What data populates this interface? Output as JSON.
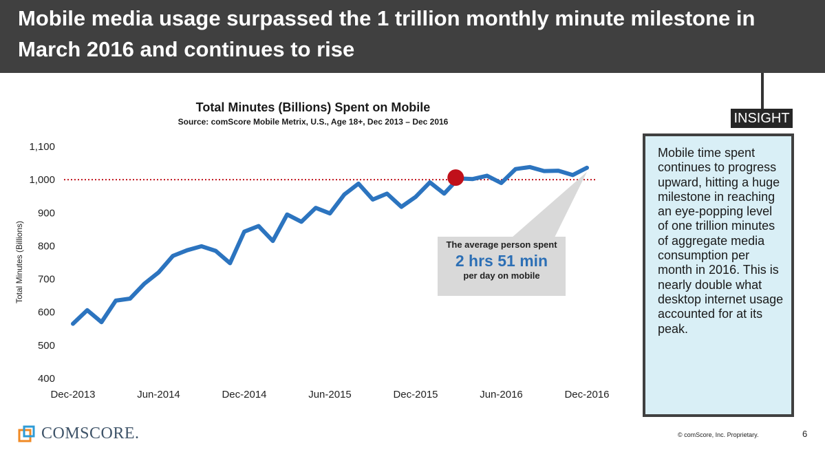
{
  "header": {
    "title": "Mobile media usage surpassed the 1 trillion monthly minute milestone in March 2016 and continues to rise"
  },
  "insight": {
    "tag": "INSIGHT",
    "text": "Mobile time spent continues to progress upward, hitting a huge milestone in reaching an eye-popping level of one trillion minutes of aggregate media consumption per month in 2016. This is nearly double what desktop internet usage accounted for at its peak."
  },
  "callout": {
    "line1": "The average person spent",
    "big": "2 hrs 51 min",
    "line3": "per day on mobile"
  },
  "footer": {
    "logo_text": "COMSCORE.",
    "copyright": "© comScore, Inc. Proprietary.",
    "page_number": "6"
  },
  "colors": {
    "line": "#2c74bf",
    "milestone_dot": "#c0101a",
    "reference_line": "#c0101a",
    "header_bg": "#404040",
    "insight_bg": "#d9eff6",
    "callout_bg": "#d9d9d9"
  },
  "chart_data": {
    "type": "line",
    "title": "Total Minutes (Billions) Spent on Mobile",
    "subtitle": "Source: comScore Mobile Metrix, U.S., Age 18+, Dec 2013 – Dec 2016",
    "ylabel": "Total Minutes (Billions)",
    "xlabel": "",
    "ylim": [
      400,
      1100
    ],
    "yticks": [
      400,
      500,
      600,
      700,
      800,
      900,
      1000,
      1100
    ],
    "ytick_labels": [
      "400",
      "500",
      "600",
      "700",
      "800",
      "900",
      "1,000",
      "1,100"
    ],
    "xtick_labels": [
      "Dec-2013",
      "Jun-2014",
      "Dec-2014",
      "Jun-2015",
      "Dec-2015",
      "Jun-2016",
      "Dec-2016"
    ],
    "reference_line": 1000,
    "milestone_index": 27,
    "grid": false,
    "legend": "none",
    "x": [
      "Dec-2013",
      "Jan-2014",
      "Feb-2014",
      "Mar-2014",
      "Apr-2014",
      "May-2014",
      "Jun-2014",
      "Jul-2014",
      "Aug-2014",
      "Sep-2014",
      "Oct-2014",
      "Nov-2014",
      "Dec-2014",
      "Jan-2015",
      "Feb-2015",
      "Mar-2015",
      "Apr-2015",
      "May-2015",
      "Jun-2015",
      "Jul-2015",
      "Aug-2015",
      "Sep-2015",
      "Oct-2015",
      "Nov-2015",
      "Dec-2015",
      "Jan-2016",
      "Feb-2016",
      "Mar-2016",
      "Apr-2016",
      "May-2016",
      "Jun-2016",
      "Jul-2016",
      "Aug-2016",
      "Sep-2016",
      "Oct-2016",
      "Nov-2016",
      "Dec-2016"
    ],
    "series": [
      {
        "values": [
          565,
          606,
          570,
          635,
          641,
          686,
          720,
          770,
          787,
          799,
          785,
          748,
          843,
          860,
          815,
          895,
          873,
          915,
          898,
          955,
          988,
          940,
          958,
          918,
          948,
          992,
          958,
          1004,
          1002,
          1012,
          990,
          1032,
          1038,
          1026,
          1027,
          1014,
          1036
        ]
      }
    ]
  }
}
